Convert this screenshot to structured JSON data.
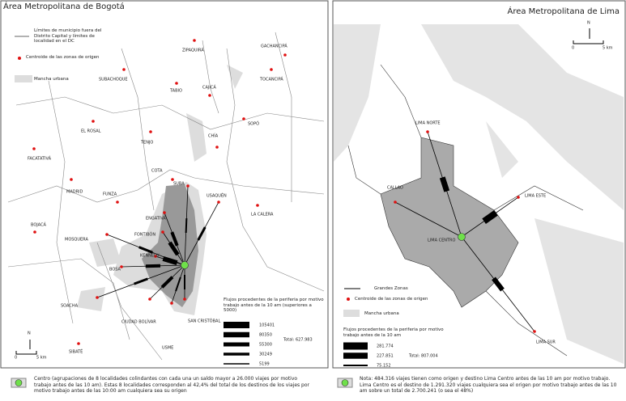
{
  "bogota": {
    "title": "Área Metropolitana de Bogotá",
    "legend": [
      "Límites de municipio fuera del Distrito Capital y límites de localidad en el DC",
      "Centroide de las zonas de origen",
      "Mancha urbana"
    ],
    "places": [
      "ZIPAQUIRÁ",
      "GACHANCIPÁ",
      "SUBACHOQUE",
      "TABIO",
      "CAJICÁ",
      "TOCANCIPÁ",
      "EL ROSAL",
      "TENJO",
      "SOPÓ",
      "CHÍA",
      "FACATATIVÁ",
      "COTA",
      "SUBA",
      "USAQUÉN",
      "MADRID",
      "FUNZA",
      "ENGATIVÁ",
      "LA CALERA",
      "BOJACÁ",
      "MOSQUERA",
      "FONTIBÓN",
      "KENNEDY",
      "BOSA",
      "SOACHA",
      "CIUDAD BOLÍVAR",
      "USME",
      "SAN CRISTÓBAL",
      "SIBATÉ"
    ],
    "flow_legend": {
      "title": "Flujos procedentes de la periferia por motivo trabajo antes de la 10 am (superiores a 5000)",
      "values": [
        "105401",
        "80350",
        "55300",
        "30249",
        "5199"
      ],
      "total": "Total: 627.983"
    },
    "north": "N",
    "scale": [
      "0",
      "5 km"
    ],
    "caption": "Centro (agrupaciones de 8 localidades colindantes con cada una un saldo mayor a 26.000 viajes por motivo trabajo antes de las 10 am). Estas 8 localidades corresponden al 42,4% del total de los destinos de los viajes por motivo trabajo antes de las 10:00 am cualquiera sea su origen"
  },
  "lima": {
    "title": "Área Metropolitana de Lima",
    "places": [
      "LIMA NORTE",
      "CALLAO",
      "LIMA ESTE",
      "LIMA CENTRO",
      "LIMA SUR"
    ],
    "legend": [
      "Grandes Zonas",
      "Centroide de las zonas de origen",
      "Mancha urbana"
    ],
    "flow_legend": {
      "title": "Flujos procedentes de la periferia por motivo trabajo antes de la 10 am",
      "values": [
        "281.774",
        "227.851",
        "75.152"
      ],
      "total": "Total: 807.004"
    },
    "north": "N",
    "scale": [
      "0",
      "5 km"
    ],
    "caption": "Nota: 484.316 viajes tienen como origen y destino Lima Centro antes de las 10 am por motivo trabajo. Lima Centro es el destino de 1.291.320 viajes cualquiera sea el origen por motivo trabajo antes de las 10 am sobre un total de 2.700.241 (o sea el 48%)"
  }
}
